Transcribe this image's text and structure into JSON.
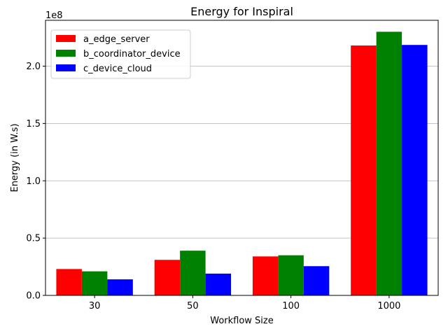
{
  "chart_data": {
    "type": "bar",
    "title": "Energy for Inspiral",
    "xlabel": "Workflow Size",
    "ylabel": "Energy (in W.s)",
    "y_multiplier_label": "1e8",
    "categories": [
      "30",
      "50",
      "100",
      "1000"
    ],
    "series": [
      {
        "name": "a_edge_server",
        "color": "#ff0000",
        "values": [
          23000000,
          31000000,
          34000000,
          218000000
        ]
      },
      {
        "name": "b_coordinator_device",
        "color": "#008000",
        "values": [
          21000000,
          39000000,
          35000000,
          230000000
        ]
      },
      {
        "name": "c_device_cloud",
        "color": "#0000ff",
        "values": [
          14000000,
          19000000,
          25500000,
          218500000
        ]
      }
    ],
    "ylim": [
      0,
      240000000
    ],
    "yticks": [
      0,
      50000000,
      100000000,
      150000000,
      200000000
    ],
    "ytick_labels": [
      "0.0",
      "0.5",
      "1.0",
      "1.5",
      "2.0"
    ],
    "grid": "horizontal",
    "legend_position": "top-left"
  }
}
